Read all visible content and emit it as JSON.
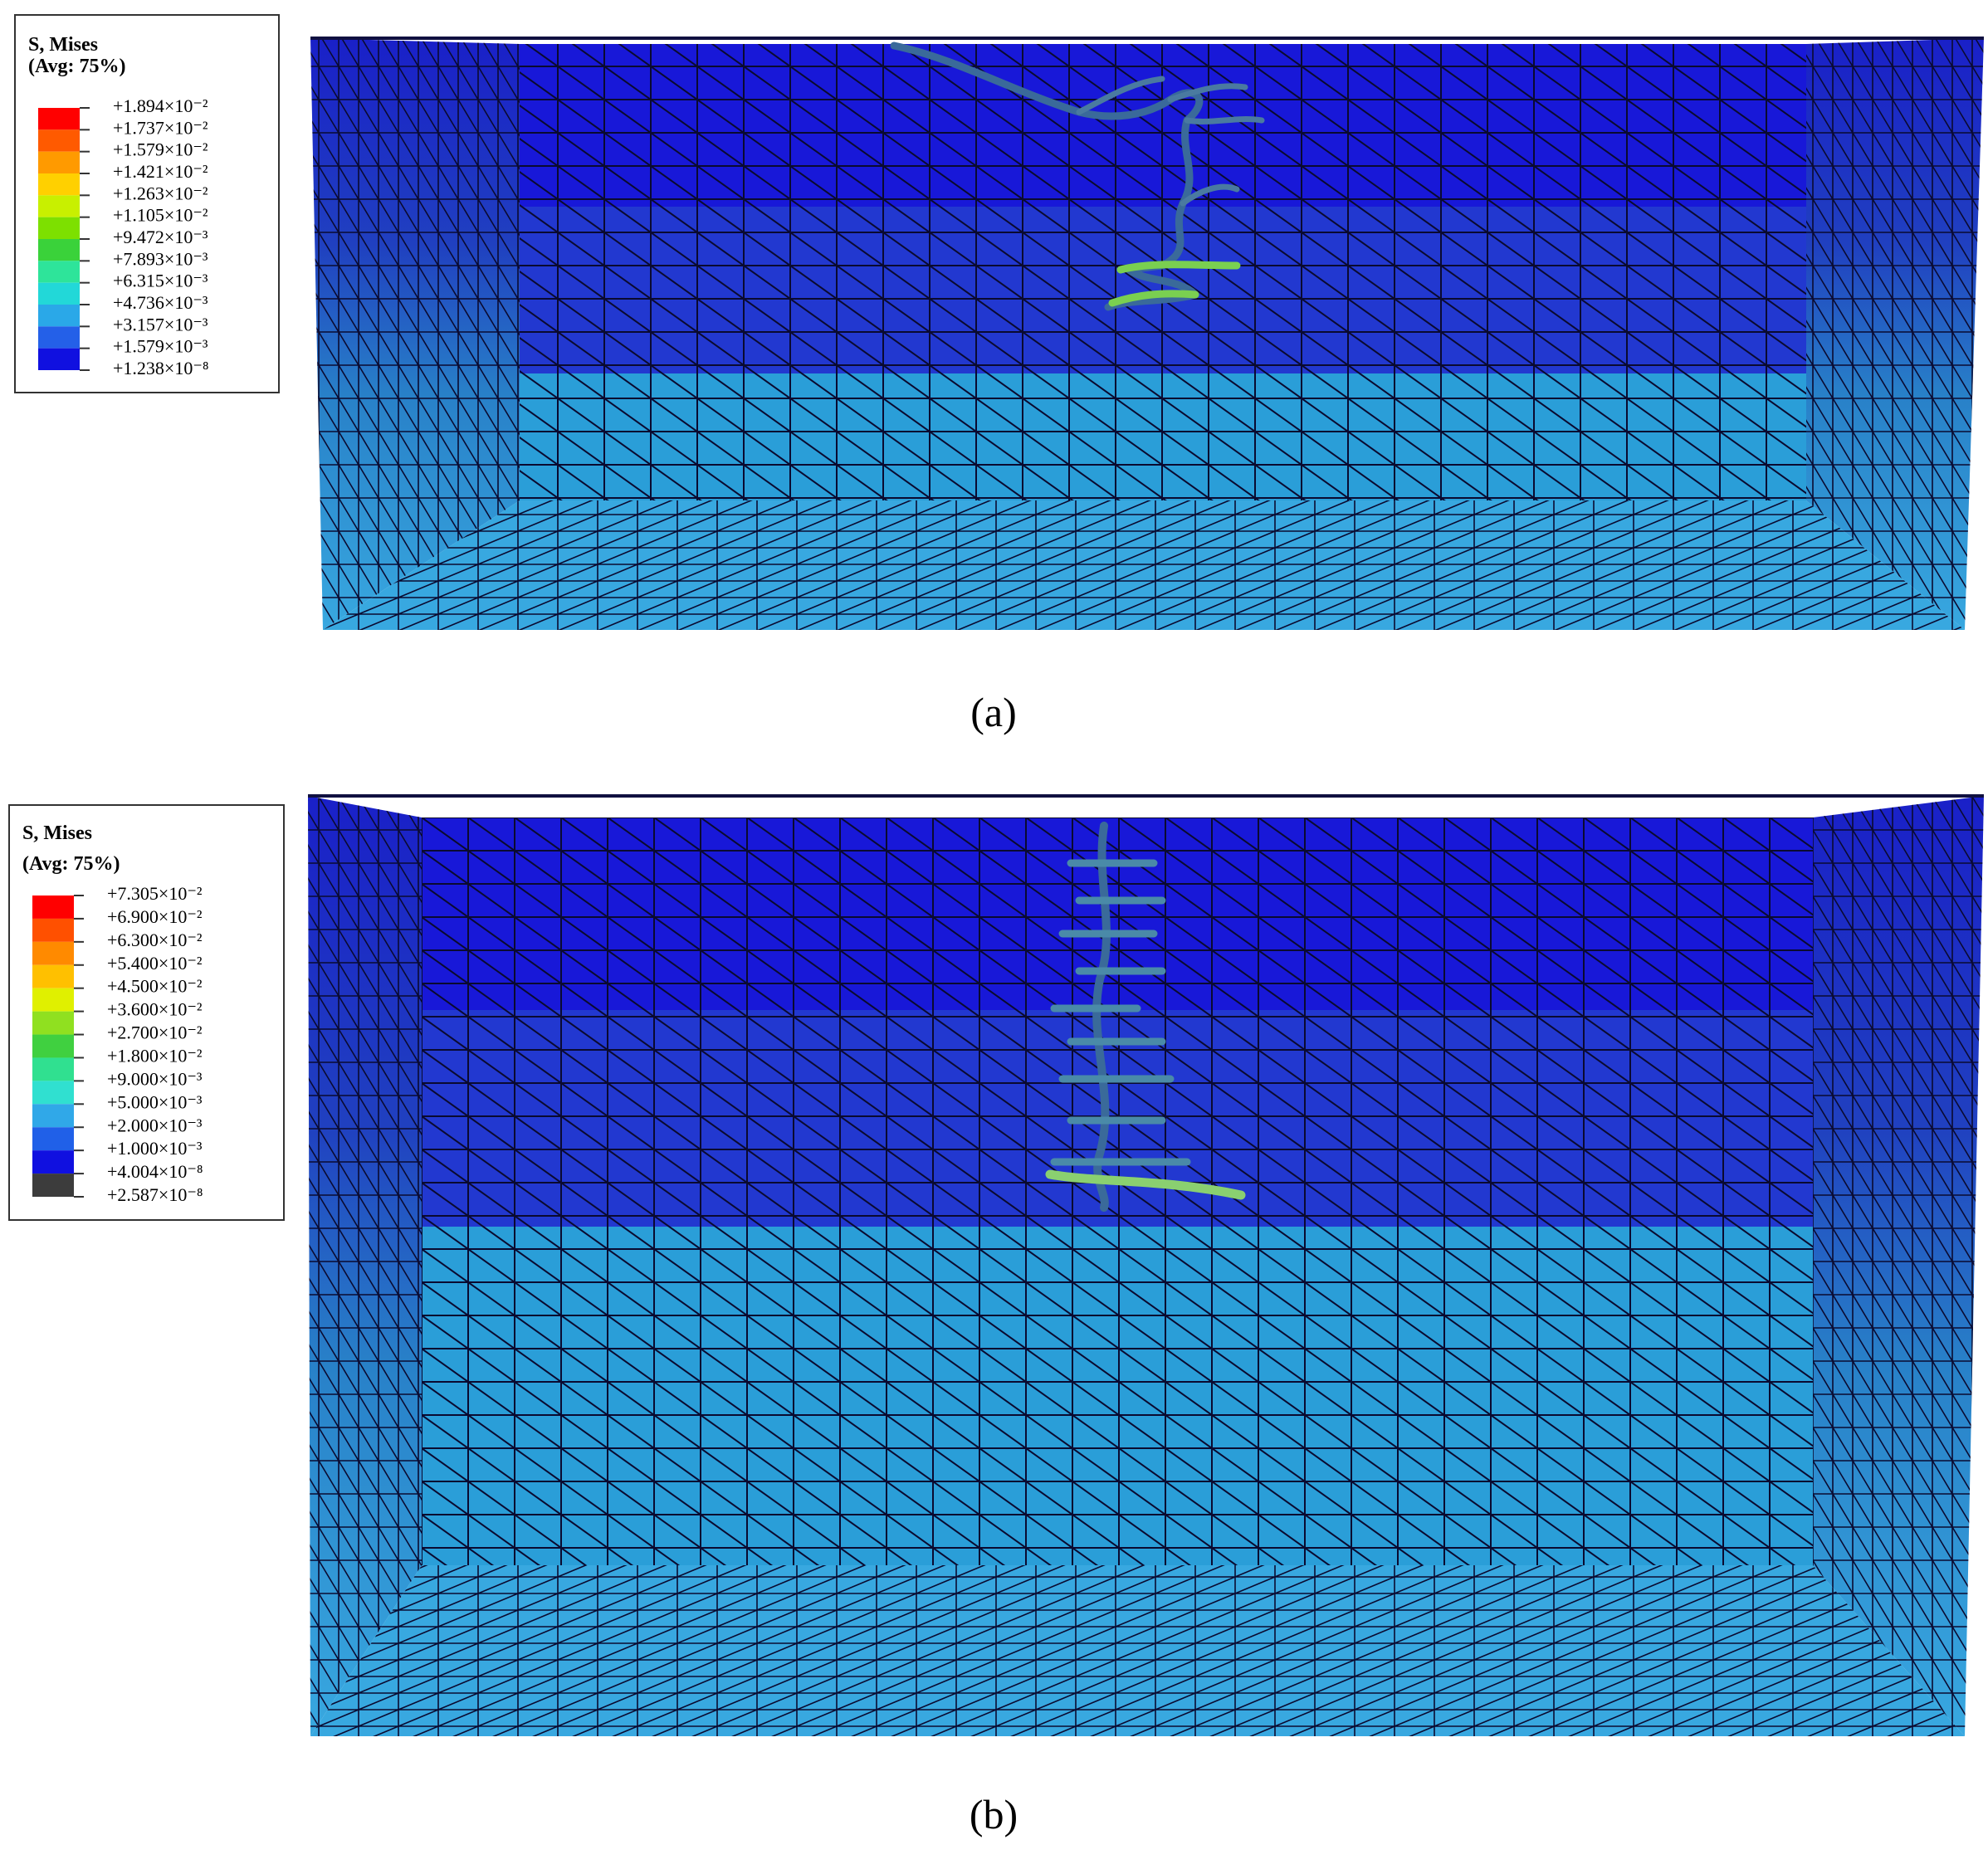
{
  "panels": [
    {
      "caption": "(a)",
      "legend": {
        "title": "S, Mises",
        "subtitle": "(Avg: 75%)",
        "labels": [
          "+1.894×10⁻²",
          "+1.737×10⁻²",
          "+1.579×10⁻²",
          "+1.421×10⁻²",
          "+1.263×10⁻²",
          "+1.105×10⁻²",
          "+9.472×10⁻³",
          "+7.893×10⁻³",
          "+6.315×10⁻³",
          "+4.736×10⁻³",
          "+3.157×10⁻³",
          "+1.579×10⁻³",
          "+1.238×10⁻⁸"
        ],
        "colors": [
          "#ff0000",
          "#ff5a00",
          "#ff9a00",
          "#ffd000",
          "#c8f000",
          "#7de000",
          "#3ad23a",
          "#2ee49a",
          "#22d8d8",
          "#2aa8e8",
          "#2460e8",
          "#1010e0"
        ]
      }
    },
    {
      "caption": "(b)",
      "legend": {
        "title": "S, Mises",
        "subtitle": "(Avg: 75%)",
        "labels": [
          "+7.305×10⁻²",
          "+6.900×10⁻²",
          "+6.300×10⁻²",
          "+5.400×10⁻²",
          "+4.500×10⁻²",
          "+3.600×10⁻²",
          "+2.700×10⁻²",
          "+1.800×10⁻²",
          "+9.000×10⁻³",
          "+5.000×10⁻³",
          "+2.000×10⁻³",
          "+1.000×10⁻³",
          "+4.004×10⁻⁸",
          "+2.587×10⁻⁸"
        ],
        "colors": [
          "#ff0000",
          "#ff5000",
          "#ff8a00",
          "#ffc000",
          "#e0f000",
          "#90e020",
          "#40d040",
          "#30e090",
          "#30e0d0",
          "#30a8e8",
          "#2060e8",
          "#1010e0",
          "#3c3c3c"
        ]
      }
    }
  ]
}
